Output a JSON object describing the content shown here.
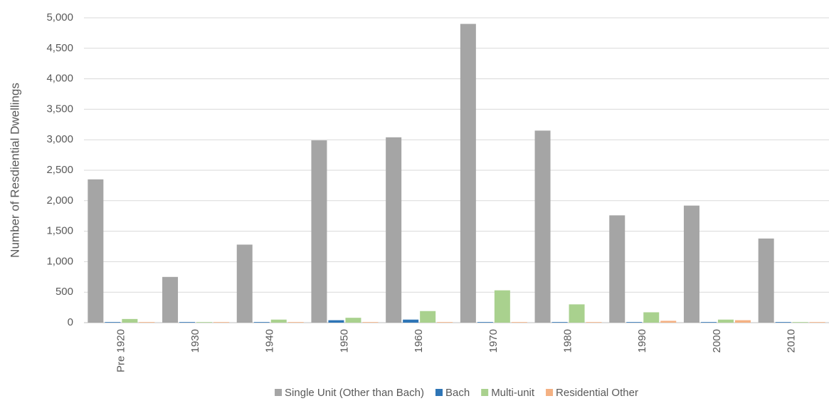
{
  "chart_data": {
    "type": "bar",
    "y_label": "Number of Resdiential Dwellings",
    "categories": [
      "Pre 1920",
      "1930",
      "1940",
      "1950",
      "1960",
      "1970",
      "1980",
      "1990",
      "2000",
      "2010"
    ],
    "series": [
      {
        "name": "Single Unit (Other than Bach)",
        "color": "#a5a5a5",
        "values": [
          2350,
          750,
          1280,
          2990,
          3040,
          4900,
          3150,
          1760,
          1920,
          1380
        ]
      },
      {
        "name": "Bach",
        "color": "#2e75b6",
        "values": [
          10,
          10,
          10,
          40,
          50,
          10,
          10,
          10,
          10,
          10
        ]
      },
      {
        "name": "Multi-unit",
        "color": "#a9d18e",
        "values": [
          60,
          10,
          50,
          80,
          190,
          530,
          300,
          170,
          50,
          10
        ]
      },
      {
        "name": "Residential Other",
        "color": "#f4b183",
        "values": [
          10,
          10,
          10,
          10,
          10,
          10,
          10,
          30,
          40,
          10
        ]
      }
    ],
    "ylim": [
      0,
      5000
    ],
    "yticks": [
      0,
      500,
      {
        "value": 1000,
        "label": "1,000"
      },
      {
        "value": 1500,
        "label": "1,500"
      },
      {
        "value": 2000,
        "label": "2,000"
      },
      {
        "value": 2500,
        "label": "2,500"
      },
      {
        "value": 3000,
        "label": "3,000"
      },
      {
        "value": 3500,
        "label": "3,500"
      },
      {
        "value": 4000,
        "label": "4,000"
      },
      {
        "value": 4500,
        "label": "4,500"
      },
      {
        "value": 5000,
        "label": "5,000"
      }
    ],
    "grid": true,
    "legend": "bottom"
  }
}
